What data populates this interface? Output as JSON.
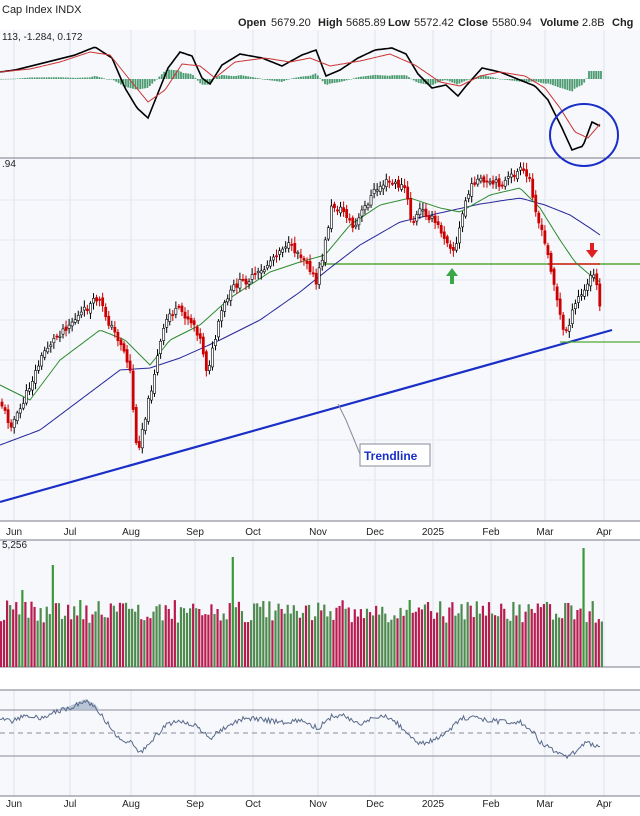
{
  "header": {
    "title": "Cap Index INDX",
    "open_label": "Open",
    "open": "5679.20",
    "high_label": "High",
    "high": "5685.89",
    "low_label": "Low",
    "low": "5572.42",
    "close_label": "Close",
    "close": "5580.94",
    "volume_label": "Volume",
    "volume": "2.8B",
    "chg_label": "Chg"
  },
  "macd_panel": {
    "label": "113, -1.284, 0.172",
    "colors": {
      "macd": "#000000",
      "signal": "#cc3333",
      "hist": "#2e8b57"
    }
  },
  "price_panel": {
    "last_label": ".94",
    "trendline_label": "Trendline",
    "colors": {
      "up": "#000000",
      "down": "#cc0000",
      "ma_short": "#2e8b2e",
      "ma_long": "#27279a",
      "trendline": "#1a2ec8",
      "support": "#55a832",
      "resistance": "#dd2222"
    }
  },
  "volume_panel": {
    "label": "5,256",
    "colors": {
      "up": "#4e8a4e",
      "down": "#b81b4e",
      "big": "#3a9a3a"
    }
  },
  "x_axis": {
    "months": [
      "Jun",
      "Jul",
      "Aug",
      "Sep",
      "Oct",
      "Nov",
      "Dec",
      "2025",
      "Feb",
      "Mar",
      "Apr"
    ]
  },
  "chart_data": {
    "type": "line",
    "title": "Cap Index INDX",
    "x": [
      "Jun",
      "Jul",
      "Aug",
      "Sep",
      "Oct",
      "Nov",
      "Dec",
      "2025",
      "Feb",
      "Mar",
      "Apr"
    ],
    "series": [
      {
        "values": [
          5290,
          5520,
          5300,
          5640,
          5760,
          5880,
          6040,
          5880,
          6050,
          5650,
          5580
        ]
      }
    ],
    "annotations": [
      "Trendline"
    ]
  }
}
